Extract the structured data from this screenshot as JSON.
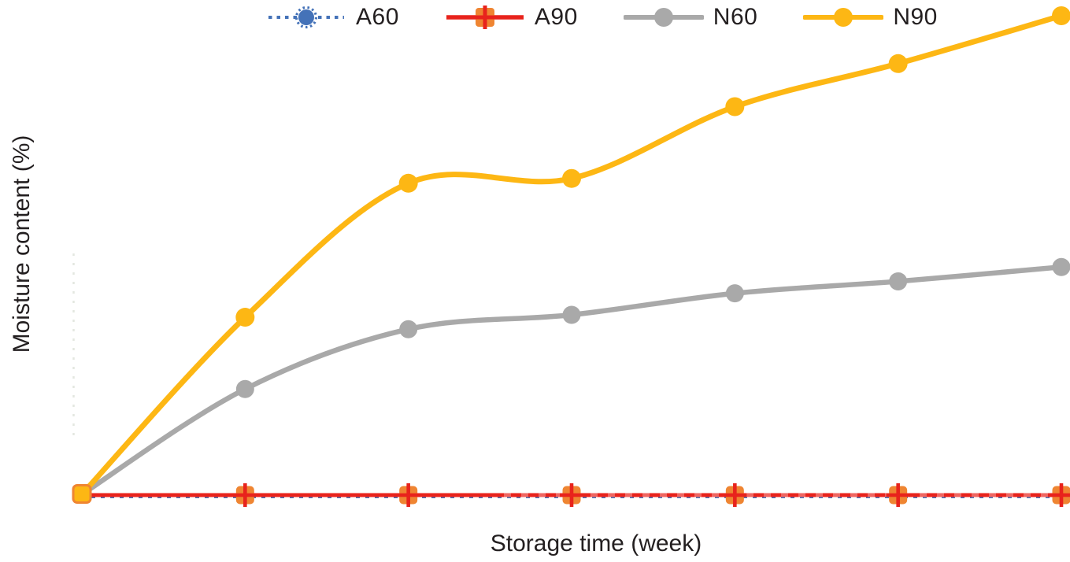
{
  "figure": {
    "background": "#ffffff",
    "xlabel": "Storage time (week)",
    "ylabel": "Moisture content (%)"
  },
  "chart_data": {
    "type": "line",
    "title": "",
    "xlabel": "Storage time (week)",
    "ylabel": "Moisture content (%)",
    "x": [
      0,
      1,
      2,
      3,
      4,
      5,
      6
    ],
    "x_unit": "week",
    "axis_tick_labels_visible": false,
    "grid": false,
    "legend_position": "top-center",
    "ylim": [
      0,
      100
    ],
    "values_scale": "relative estimate (0 = baseline, 100 = highest plotted point; no numeric ticks shown in figure)",
    "series": [
      {
        "name": "A60",
        "color": "#4472b8",
        "line_style": "dotted",
        "marker": "dotted-circle",
        "marker_color": "#4472b8",
        "values": [
          0,
          0,
          0,
          0,
          0,
          0,
          0
        ]
      },
      {
        "name": "A90",
        "color": "#e8231c",
        "line_style": "solid",
        "marker": "cross-square",
        "marker_color": "#ef8532",
        "values": [
          0,
          0,
          0,
          0,
          0,
          0,
          0
        ]
      },
      {
        "name": "N60",
        "color": "#a9a9a9",
        "line_style": "solid",
        "marker": "circle",
        "marker_color": "#a9a9a9",
        "values": [
          0,
          22,
          34.5,
          37.5,
          42,
          44.5,
          47.5
        ]
      },
      {
        "name": "N90",
        "color": "#fdb714",
        "line_style": "solid",
        "marker": "circle",
        "marker_color": "#fdb714",
        "values": [
          0,
          37,
          65,
          66,
          81,
          90,
          100
        ]
      }
    ],
    "origin_marker": {
      "shape": "square",
      "fill": "#fdb714",
      "border": "#ef8532"
    },
    "axis_line": {
      "style": "faint-dotted",
      "color": "#e4e7e0"
    }
  }
}
